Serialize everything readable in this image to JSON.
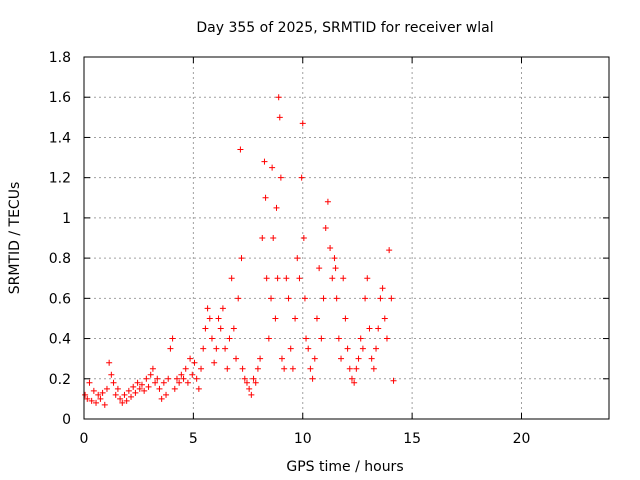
{
  "chart_data": {
    "type": "scatter",
    "title": "Day 355 of 2025, SRMTID for receiver wlal",
    "xlabel": "GPS time / hours",
    "ylabel": "SRMTID / TECUs",
    "xlim": [
      0,
      24
    ],
    "ylim": [
      0,
      1.8
    ],
    "xticks": [
      0,
      5,
      10,
      15,
      20
    ],
    "xtick_labels": [
      "0",
      "5",
      "10",
      "15",
      "20"
    ],
    "yticks": [
      0,
      0.2,
      0.4,
      0.6,
      0.8,
      1,
      1.2,
      1.4,
      1.6,
      1.8
    ],
    "ytick_labels": [
      "0",
      "0.2",
      "0.4",
      "0.6",
      "0.8",
      "1",
      "1.2",
      "1.4",
      "1.6",
      "1.8"
    ],
    "grid": true,
    "marker": "+",
    "color": "#ff0000",
    "series": [
      {
        "name": "SRMTID",
        "x": [
          0.05,
          0.15,
          0.25,
          0.35,
          0.45,
          0.55,
          0.65,
          0.75,
          0.85,
          0.95,
          1.05,
          1.15,
          1.25,
          1.35,
          1.45,
          1.55,
          1.65,
          1.75,
          1.85,
          1.95,
          2.05,
          2.15,
          2.25,
          2.35,
          2.45,
          2.55,
          2.65,
          2.75,
          2.85,
          2.95,
          3.05,
          3.15,
          3.25,
          3.35,
          3.45,
          3.55,
          3.65,
          3.75,
          3.85,
          3.95,
          4.05,
          4.15,
          4.25,
          4.35,
          4.45,
          4.55,
          4.65,
          4.75,
          4.85,
          4.95,
          5.05,
          5.15,
          5.25,
          5.35,
          5.45,
          5.55,
          5.65,
          5.75,
          5.85,
          5.95,
          6.05,
          6.15,
          6.25,
          6.35,
          6.45,
          6.55,
          6.65,
          6.75,
          6.85,
          6.95,
          7.05,
          7.15,
          7.2,
          7.25,
          7.35,
          7.45,
          7.55,
          7.65,
          7.75,
          7.85,
          7.95,
          8.05,
          8.15,
          8.25,
          8.3,
          8.35,
          8.45,
          8.55,
          8.6,
          8.65,
          8.75,
          8.8,
          8.85,
          8.9,
          8.95,
          9.0,
          9.05,
          9.15,
          9.25,
          9.35,
          9.45,
          9.55,
          9.65,
          9.75,
          9.85,
          9.95,
          10.0,
          10.05,
          10.1,
          10.15,
          10.25,
          10.35,
          10.45,
          10.55,
          10.65,
          10.75,
          10.85,
          10.95,
          11.05,
          11.15,
          11.25,
          11.35,
          11.45,
          11.5,
          11.55,
          11.65,
          11.75,
          11.85,
          11.95,
          12.05,
          12.15,
          12.25,
          12.35,
          12.45,
          12.55,
          12.65,
          12.75,
          12.85,
          12.95,
          13.05,
          13.15,
          13.25,
          13.35,
          13.45,
          13.55,
          13.65,
          13.75,
          13.85,
          13.95,
          14.05,
          14.15
        ],
        "y": [
          0.12,
          0.1,
          0.18,
          0.09,
          0.14,
          0.08,
          0.12,
          0.1,
          0.13,
          0.07,
          0.15,
          0.28,
          0.22,
          0.18,
          0.12,
          0.15,
          0.1,
          0.08,
          0.12,
          0.09,
          0.14,
          0.11,
          0.16,
          0.13,
          0.18,
          0.15,
          0.17,
          0.14,
          0.2,
          0.16,
          0.22,
          0.25,
          0.18,
          0.2,
          0.15,
          0.1,
          0.18,
          0.12,
          0.2,
          0.35,
          0.4,
          0.15,
          0.2,
          0.18,
          0.22,
          0.2,
          0.25,
          0.18,
          0.3,
          0.22,
          0.28,
          0.2,
          0.15,
          0.25,
          0.35,
          0.45,
          0.55,
          0.5,
          0.4,
          0.28,
          0.35,
          0.5,
          0.45,
          0.55,
          0.35,
          0.25,
          0.4,
          0.7,
          0.45,
          0.3,
          0.6,
          1.34,
          0.8,
          0.25,
          0.2,
          0.18,
          0.15,
          0.12,
          0.2,
          0.18,
          0.25,
          0.3,
          0.9,
          1.28,
          1.1,
          0.7,
          0.4,
          0.6,
          1.25,
          0.9,
          0.5,
          1.05,
          0.7,
          1.6,
          1.5,
          1.2,
          0.3,
          0.25,
          0.7,
          0.6,
          0.35,
          0.25,
          0.5,
          0.8,
          0.7,
          1.2,
          1.47,
          0.9,
          0.6,
          0.4,
          0.35,
          0.25,
          0.2,
          0.3,
          0.5,
          0.75,
          0.4,
          0.6,
          0.95,
          1.08,
          0.85,
          0.7,
          0.8,
          0.75,
          0.6,
          0.4,
          0.3,
          0.7,
          0.5,
          0.35,
          0.25,
          0.2,
          0.18,
          0.25,
          0.3,
          0.4,
          0.35,
          0.6,
          0.7,
          0.45,
          0.3,
          0.25,
          0.35,
          0.45,
          0.6,
          0.65,
          0.5,
          0.4,
          0.84,
          0.6,
          0.19
        ]
      }
    ]
  }
}
